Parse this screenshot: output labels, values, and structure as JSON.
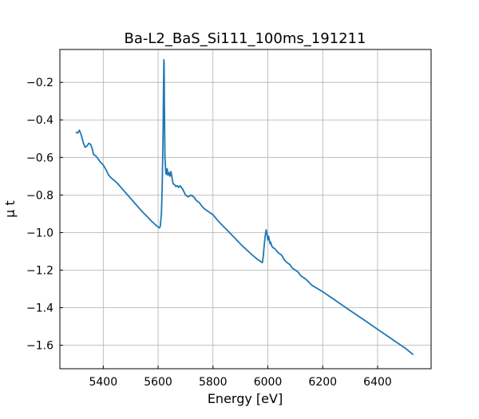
{
  "chart_data": {
    "type": "line",
    "title": "Ba-L2_BaS_Si111_100ms_191211",
    "xlabel": "Energy [eV]",
    "ylabel": "μ t",
    "xlim": [
      5242,
      6595
    ],
    "ylim": [
      -1.725,
      -0.025
    ],
    "xticks": [
      5400,
      5600,
      5800,
      6000,
      6200,
      6400
    ],
    "yticks": [
      -0.2,
      -0.4,
      -0.6,
      -0.8,
      -1.0,
      -1.2,
      -1.4,
      -1.6
    ],
    "xtick_labels": [
      "5400",
      "5600",
      "5800",
      "6000",
      "6200",
      "6400"
    ],
    "ytick_labels": [
      "−0.2",
      "−0.4",
      "−0.6",
      "−0.8",
      "−1.0",
      "−1.2",
      "−1.4",
      "−1.6"
    ],
    "grid": true,
    "line_color": "#1f77b4",
    "series": [
      {
        "x": [
          5300,
          5307,
          5313,
          5320,
          5327,
          5334,
          5340,
          5347,
          5354,
          5360,
          5365,
          5372,
          5380,
          5390,
          5400,
          5410,
          5420,
          5430,
          5450,
          5480,
          5510,
          5540,
          5560,
          5580,
          5600,
          5605,
          5608,
          5612,
          5615,
          5618,
          5620,
          5621,
          5622,
          5623,
          5625,
          5628,
          5630,
          5633,
          5636,
          5640,
          5643,
          5647,
          5652,
          5655,
          5660,
          5665,
          5670,
          5675,
          5680,
          5690,
          5700,
          5710,
          5720,
          5730,
          5740,
          5750,
          5760,
          5770,
          5780,
          5800,
          5820,
          5850,
          5880,
          5910,
          5940,
          5960,
          5980,
          5983,
          5986,
          5990,
          5994,
          5997,
          6000,
          6003,
          6005,
          6008,
          6010,
          6014,
          6018,
          6025,
          6033,
          6040,
          6050,
          6060,
          6070,
          6080,
          6090,
          6100,
          6110,
          6120,
          6140,
          6160,
          6200,
          6250,
          6300,
          6350,
          6400,
          6450,
          6500,
          6530
        ],
        "y": [
          -0.465,
          -0.47,
          -0.455,
          -0.48,
          -0.52,
          -0.545,
          -0.54,
          -0.525,
          -0.53,
          -0.555,
          -0.585,
          -0.59,
          -0.605,
          -0.625,
          -0.64,
          -0.665,
          -0.695,
          -0.71,
          -0.735,
          -0.785,
          -0.835,
          -0.885,
          -0.915,
          -0.945,
          -0.97,
          -0.975,
          -0.965,
          -0.9,
          -0.75,
          -0.5,
          -0.2,
          -0.08,
          -0.1,
          -0.3,
          -0.6,
          -0.68,
          -0.69,
          -0.66,
          -0.695,
          -0.68,
          -0.7,
          -0.675,
          -0.72,
          -0.74,
          -0.745,
          -0.755,
          -0.75,
          -0.76,
          -0.75,
          -0.77,
          -0.8,
          -0.81,
          -0.8,
          -0.81,
          -0.83,
          -0.84,
          -0.86,
          -0.875,
          -0.885,
          -0.905,
          -0.94,
          -0.985,
          -1.03,
          -1.075,
          -1.115,
          -1.14,
          -1.16,
          -1.13,
          -1.08,
          -1.02,
          -0.985,
          -1.01,
          -1.04,
          -1.02,
          -1.035,
          -1.06,
          -1.05,
          -1.07,
          -1.08,
          -1.085,
          -1.1,
          -1.11,
          -1.12,
          -1.145,
          -1.16,
          -1.17,
          -1.19,
          -1.2,
          -1.21,
          -1.23,
          -1.25,
          -1.28,
          -1.315,
          -1.365,
          -1.415,
          -1.465,
          -1.515,
          -1.565,
          -1.615,
          -1.65
        ]
      }
    ]
  }
}
